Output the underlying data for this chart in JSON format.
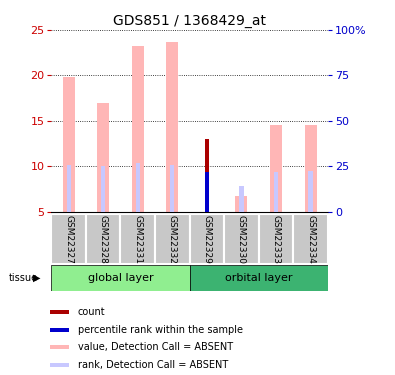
{
  "title": "GDS851 / 1368429_at",
  "samples": [
    "GSM22327",
    "GSM22328",
    "GSM22331",
    "GSM22332",
    "GSM22329",
    "GSM22330",
    "GSM22333",
    "GSM22334"
  ],
  "value_absent": [
    19.8,
    17.0,
    23.2,
    23.7,
    null,
    6.8,
    14.5,
    14.6
  ],
  "rank_absent_pct": [
    26.0,
    25.0,
    27.0,
    26.0,
    null,
    14.5,
    22.0,
    22.5
  ],
  "count": [
    null,
    null,
    null,
    null,
    13.0,
    null,
    null,
    null
  ],
  "percentile_rank_pct": [
    null,
    null,
    null,
    null,
    22.0,
    null,
    null,
    null
  ],
  "ylim_left": [
    5,
    25
  ],
  "ylim_right": [
    0,
    100
  ],
  "left_ticks": [
    5,
    10,
    15,
    20,
    25
  ],
  "right_ticks": [
    0,
    25,
    50,
    75,
    100
  ],
  "color_value_absent": "#FFB6B6",
  "color_rank_absent": "#C8C8FF",
  "color_count": "#AA0000",
  "color_percentile": "#0000CC",
  "ylabel_left_color": "#CC0000",
  "ylabel_right_color": "#0000CC",
  "group1_color": "#90EE90",
  "group2_color": "#3CB371",
  "bar_width": 0.35,
  "rank_bar_width": 0.12
}
